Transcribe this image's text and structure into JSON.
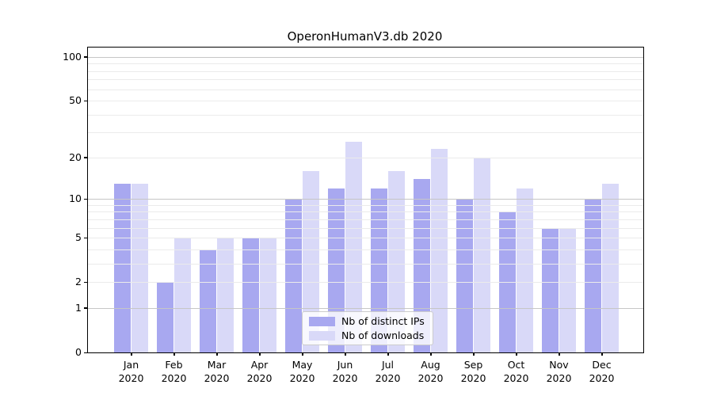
{
  "title": "OperonHumanV3.db 2020",
  "colors": {
    "ips_bar": "#a8a8f0",
    "downloads_bar": "#d9d9f8",
    "grid_major": "#c6c6c6",
    "grid_minor": "#ebebeb",
    "axis": "#000000",
    "legend_border": "#cccccc",
    "legend_bg": "rgba(255,255,255,0.8)"
  },
  "legend": {
    "items": [
      "Nb of distinct IPs",
      "Nb of downloads"
    ]
  },
  "chart_data": {
    "type": "bar",
    "title": "OperonHumanV3.db 2020",
    "categories": [
      "Jan 2020",
      "Feb 2020",
      "Mar 2020",
      "Apr 2020",
      "May 2020",
      "Jun 2020",
      "Jul 2020",
      "Aug 2020",
      "Sep 2020",
      "Oct 2020",
      "Nov 2020",
      "Dec 2020"
    ],
    "series": [
      {
        "name": "Nb of distinct IPs",
        "color": "#a8a8f0",
        "values": [
          13,
          2,
          4,
          5,
          10,
          12,
          12,
          14,
          10,
          8,
          6,
          10
        ]
      },
      {
        "name": "Nb of downloads",
        "color": "#d9d9f8",
        "values": [
          13,
          5,
          5,
          5,
          16,
          26,
          16,
          23,
          20,
          12,
          6,
          13
        ]
      }
    ],
    "xlabel": "",
    "ylabel": "",
    "yscale": "log1p",
    "ylim": [
      0,
      116
    ],
    "yticks": [
      100,
      50,
      20,
      10,
      5,
      2,
      1,
      0
    ],
    "major_gridlines": [
      1,
      10,
      100
    ],
    "minor_gridlines": [
      2,
      3,
      4,
      5,
      6,
      7,
      8,
      9,
      20,
      30,
      40,
      50,
      60,
      70,
      80,
      90
    ],
    "grid": true,
    "legend_position": "lower center"
  }
}
